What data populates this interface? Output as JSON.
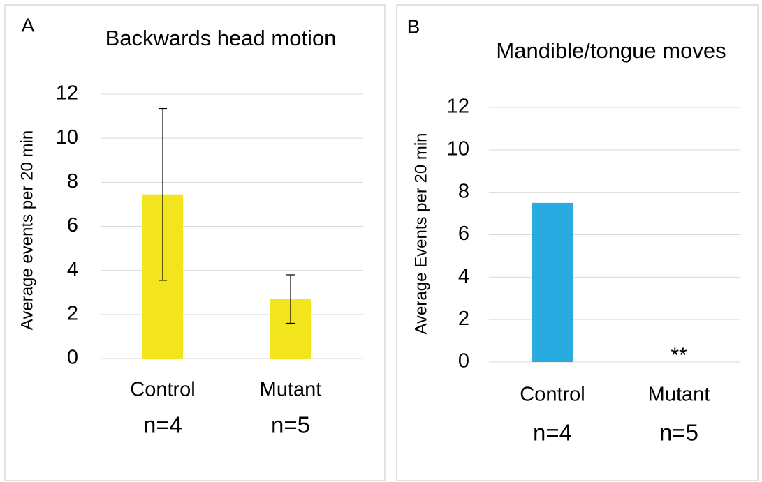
{
  "chart_data": [
    {
      "type": "bar",
      "panel_label": "A",
      "title": "Backwards head motion",
      "y_label": "Average events per 20 min",
      "categories": [
        "Control",
        "Mutant"
      ],
      "sample_sizes": [
        "n=4",
        "n=5"
      ],
      "values": [
        7.45,
        2.7
      ],
      "errors": [
        3.9,
        1.1
      ],
      "color": "#f2e51d",
      "ylim": [
        0,
        12
      ],
      "yticks": [
        0,
        2,
        4,
        6,
        8,
        10,
        12
      ],
      "grid": true
    },
    {
      "type": "bar",
      "panel_label": "B",
      "title": "Mandible/tongue moves",
      "y_label": "Average Events per 20 min",
      "categories": [
        "Control",
        "Mutant"
      ],
      "sample_sizes": [
        "n=4",
        "n=5"
      ],
      "values": [
        7.5,
        0
      ],
      "color": "#29abe2",
      "annotation": {
        "text": "**",
        "category": "Mutant"
      },
      "ylim": [
        0,
        12
      ],
      "yticks": [
        0,
        2,
        4,
        6,
        8,
        10,
        12
      ],
      "grid": true
    }
  ]
}
